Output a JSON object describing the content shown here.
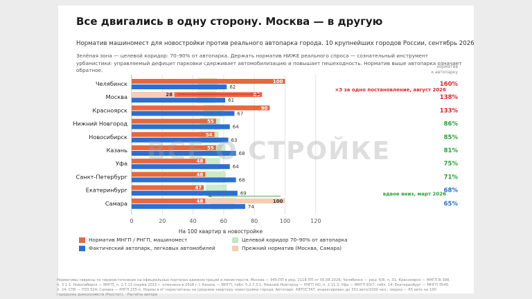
{
  "title": "Все двигались в одну сторону. Москва — в другую",
  "subtitle": "Норматив машиномест для новостройки против реального автопарка города. 10 крупнейших городов России, сентябрь 2026",
  "description": "Зелёная зона — целевой коридор: 70–90% от автопарка. Держать норматив НИЖЕ реального спроса — сознательный инструмент урбанистики: управляемый дефицит парковки сдерживает автомобилизацию и повышает пешеходность. Норматив выше автопарка означает обратное.",
  "watermark": "ВСЕ О СТРОЙКЕ",
  "ratio_header_line1": "норматив",
  "ratio_header_line2": "к автопарку",
  "legend": {
    "norm": "Норматив МНГП / РНГП, машиномест",
    "fleet": "Фактический автопарк, легковых автомобилей",
    "corridor": "Целевой коридор 70–90% от автопарка",
    "old_norm": "Прежний норматив (Москва, Самара)"
  },
  "colors": {
    "norm": "#e8673c",
    "fleet": "#2b6fd1",
    "corridor": "#c3e6c3",
    "old_norm": "#f7cdb4",
    "red": "#e0262e",
    "green": "#2e9e3a",
    "blue": "#2b6fd1"
  },
  "footer": "Нормативы сверены по первоисточникам на официальных порталах администраций и министерств: Москва — 945-ПП в ред. 2118-ПП от 05.08.2026; Челябинск — реш. 6/8, п. 31; Красноярск — МНГП В-398, п. 3.1.1; Новосибирск — МНГП, п. 2.7.13 (норма 2015 г. отменена в 2018 г.); Казань — МНГП, табл. 5.2.7.3.1; Нижний Новгород — РНГП НО, п. 2.11.3; Уфа — МНГП 83/7, табл. 14; Екатеринбург — МНГП 3549, п. 24; СПб — ПЗЗ 524; Самара — РНГП 235-п. Нормы в м² пересчитаны на среднюю квартиру новостройки города. Автопарк: АВТОСТАТ, индексирован до 331 авто/1000 чел.; сверка — 65 авто на 100 городских домохозяйств (Росстат). · Расчёты автора",
  "chart_data": {
    "type": "bar",
    "orientation": "horizontal",
    "xlabel": "На 100 квартир в новостройке",
    "xlim": [
      0,
      130
    ],
    "xticks": [
      0,
      20,
      40,
      60,
      80,
      100,
      120
    ],
    "grid": true,
    "categories": [
      "Челябинск",
      "Москва",
      "Красноярск",
      "Нижний Новгород",
      "Новосибирск",
      "Казань",
      "Уфа",
      "Санкт-Петербург",
      "Екатеринбург",
      "Самара"
    ],
    "series": [
      {
        "name": "Норматив МНГП / РНГП, машиномест",
        "values": [
          100,
          85,
          90,
          55,
          54,
          55,
          48,
          48,
          47,
          48
        ]
      },
      {
        "name": "Фактический автопарк, легковых автомобилей",
        "values": [
          62,
          61,
          67,
          64,
          63,
          68,
          64,
          68,
          69,
          74
        ]
      },
      {
        "name": "Прежний норматив (Москва, Самара)",
        "values": [
          null,
          28,
          null,
          null,
          null,
          null,
          null,
          null,
          null,
          100
        ]
      }
    ],
    "corridor": {
      "name": "Целевой коридор 70–90% от автопарка",
      "low_pct": 70,
      "high_pct": 90
    },
    "ratios": [
      "160%",
      "138%",
      "133%",
      "86%",
      "85%",
      "81%",
      "75%",
      "71%",
      "68%",
      "65%"
    ],
    "ratio_colors": [
      "red",
      "red",
      "red",
      "green",
      "green",
      "green",
      "green",
      "green",
      "blue",
      "blue"
    ],
    "annotations": [
      {
        "category": "Москва",
        "text": "×3 за одно постановление, август 2026",
        "color": "red"
      },
      {
        "category": "Самара",
        "text": "вдвое вниз, март 2026",
        "color": "green"
      }
    ]
  }
}
